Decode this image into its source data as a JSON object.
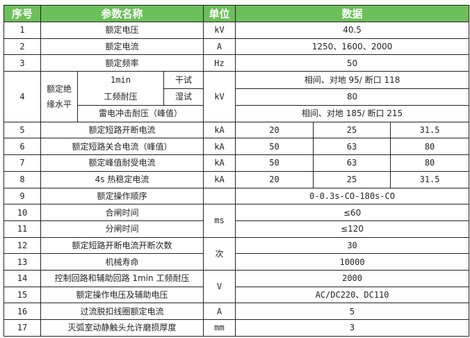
{
  "header": {
    "no": "序号",
    "name": "参数名称",
    "unit": "单位",
    "data": "数据"
  },
  "header_color": "#6cbf5b",
  "rows": [
    {
      "no": "1",
      "name": "额定电压",
      "unit": "kV",
      "value": "40.5"
    },
    {
      "no": "2",
      "name": "额定电流",
      "unit": "A",
      "value": "1250、1600、2000"
    },
    {
      "no": "3",
      "name": "额定频率",
      "unit": "Hz",
      "value": "50"
    },
    {
      "no": "4",
      "group": "额定绝缘水平",
      "sub1": "1min",
      "sub1b": "工频耐压",
      "dry": "干试",
      "wet": "湿试",
      "impulse": "雷电冲击耐压（峰值）",
      "unit": "kV",
      "dry_value": "相间、对地 95/ 断口 118",
      "wet_value": "80",
      "impulse_value": "相间、对地 185/ 断口 215"
    },
    {
      "no": "5",
      "name": "额定短路开断电流",
      "unit": "kA",
      "values": [
        "20",
        "25",
        "31.5"
      ]
    },
    {
      "no": "6",
      "name": "额定短路关合电流（峰值）",
      "unit": "kA",
      "values": [
        "50",
        "63",
        "80"
      ]
    },
    {
      "no": "7",
      "name": "额定峰值耐受电流",
      "unit": "kA",
      "values": [
        "50",
        "63",
        "80"
      ]
    },
    {
      "no": "8",
      "name": "4s 热稳定电流",
      "unit": "kA",
      "values": [
        "20",
        "25",
        "31.5"
      ]
    },
    {
      "no": "9",
      "name": "额定操作顺序",
      "unit": "",
      "value": "0-0.3s-CO-180s-CO"
    },
    {
      "no": "10",
      "name": "合闸时间",
      "unit": "ms",
      "value": "≤60"
    },
    {
      "no": "11",
      "name": "分闸时间",
      "value": "≤120"
    },
    {
      "no": "12",
      "name": "额定短路开断电流开断次数",
      "unit": "次",
      "value": "30"
    },
    {
      "no": "13",
      "name": "机械寿命",
      "value": "10000"
    },
    {
      "no": "14",
      "name": "控制回路和辅助回路 1min 工频耐压",
      "unit": "V",
      "value": "2000"
    },
    {
      "no": "15",
      "name": "额定操作电压及辅助电压",
      "value": "AC/DC220、DC110"
    },
    {
      "no": "16",
      "name": "过流脱扣线圈额定电流",
      "unit": "A",
      "value": "5"
    },
    {
      "no": "17",
      "name": "灭弧室动静触头允许磨损厚度",
      "unit": "mm",
      "value": "3"
    }
  ]
}
